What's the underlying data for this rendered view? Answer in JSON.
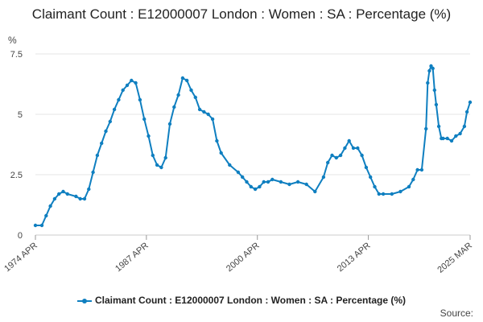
{
  "chart_data": {
    "type": "line",
    "title": "Claimant Count : E12000007 London : Women : SA : Percentage (%)",
    "ylabel": "%",
    "xlabel": "",
    "ylim": [
      0,
      7.5
    ],
    "yticks": [
      0,
      2.5,
      5,
      7.5
    ],
    "ytick_labels": [
      "0",
      "2.5",
      "5",
      "7.5"
    ],
    "xlim": [
      1974.25,
      2025.17
    ],
    "xticks": [
      1974.25,
      1987.25,
      2000.25,
      2013.25,
      2025.17
    ],
    "xtick_labels": [
      "1974 APR",
      "1987 APR",
      "2000 APR",
      "2013 APR",
      "2025 MAR"
    ],
    "grid": true,
    "legend_position": "bottom",
    "color": "#0f7fc0",
    "series": [
      {
        "name": "Claimant Count : E12000007 London : Women : SA : Percentage (%)",
        "x": [
          1974.25,
          1975.0,
          1975.5,
          1976.0,
          1976.5,
          1977.0,
          1977.5,
          1978.0,
          1979.0,
          1979.5,
          1980.0,
          1980.5,
          1981.0,
          1981.5,
          1982.0,
          1982.5,
          1983.0,
          1983.5,
          1984.0,
          1984.5,
          1985.0,
          1985.5,
          1986.0,
          1986.5,
          1987.0,
          1987.5,
          1988.0,
          1988.5,
          1989.0,
          1989.5,
          1990.0,
          1990.5,
          1991.0,
          1991.5,
          1992.0,
          1992.5,
          1993.0,
          1993.5,
          1994.0,
          1994.5,
          1995.0,
          1995.5,
          1996.0,
          1997.0,
          1998.0,
          1998.5,
          1999.0,
          1999.5,
          2000.0,
          2000.5,
          2001.0,
          2001.5,
          2002.0,
          2003.0,
          2004.0,
          2005.0,
          2006.0,
          2007.0,
          2008.0,
          2008.5,
          2009.0,
          2009.5,
          2010.0,
          2010.5,
          2011.0,
          2011.5,
          2012.0,
          2012.5,
          2013.0,
          2013.5,
          2014.0,
          2014.5,
          2015.0,
          2016.0,
          2017.0,
          2018.0,
          2018.5,
          2019.0,
          2019.5,
          2020.0,
          2020.2,
          2020.4,
          2020.6,
          2020.8,
          2021.0,
          2021.2,
          2021.5,
          2021.8,
          2022.0,
          2022.5,
          2023.0,
          2023.5,
          2024.0,
          2024.5,
          2024.8,
          2025.17
        ],
        "values": [
          0.4,
          0.4,
          0.8,
          1.2,
          1.5,
          1.7,
          1.8,
          1.7,
          1.6,
          1.5,
          1.5,
          1.9,
          2.6,
          3.3,
          3.8,
          4.3,
          4.7,
          5.2,
          5.6,
          6.0,
          6.2,
          6.4,
          6.3,
          5.6,
          4.8,
          4.1,
          3.3,
          2.9,
          2.8,
          3.2,
          4.6,
          5.3,
          5.8,
          6.5,
          6.4,
          6.0,
          5.7,
          5.2,
          5.1,
          5.0,
          4.8,
          3.9,
          3.4,
          2.9,
          2.6,
          2.4,
          2.2,
          2.0,
          1.9,
          2.0,
          2.2,
          2.2,
          2.3,
          2.2,
          2.1,
          2.2,
          2.1,
          1.8,
          2.4,
          3.0,
          3.3,
          3.2,
          3.3,
          3.6,
          3.9,
          3.6,
          3.6,
          3.3,
          2.8,
          2.4,
          2.0,
          1.7,
          1.7,
          1.7,
          1.8,
          2.0,
          2.3,
          2.7,
          2.7,
          4.4,
          6.3,
          6.8,
          7.0,
          6.9,
          6.0,
          5.4,
          4.5,
          4.0,
          4.0,
          4.0,
          3.9,
          4.1,
          4.2,
          4.5,
          5.1,
          5.5
        ]
      }
    ]
  },
  "legend": {
    "label": "Claimant Count : E12000007 London : Women : SA : Percentage (%)"
  },
  "footer": {
    "source_label": "Source:"
  }
}
